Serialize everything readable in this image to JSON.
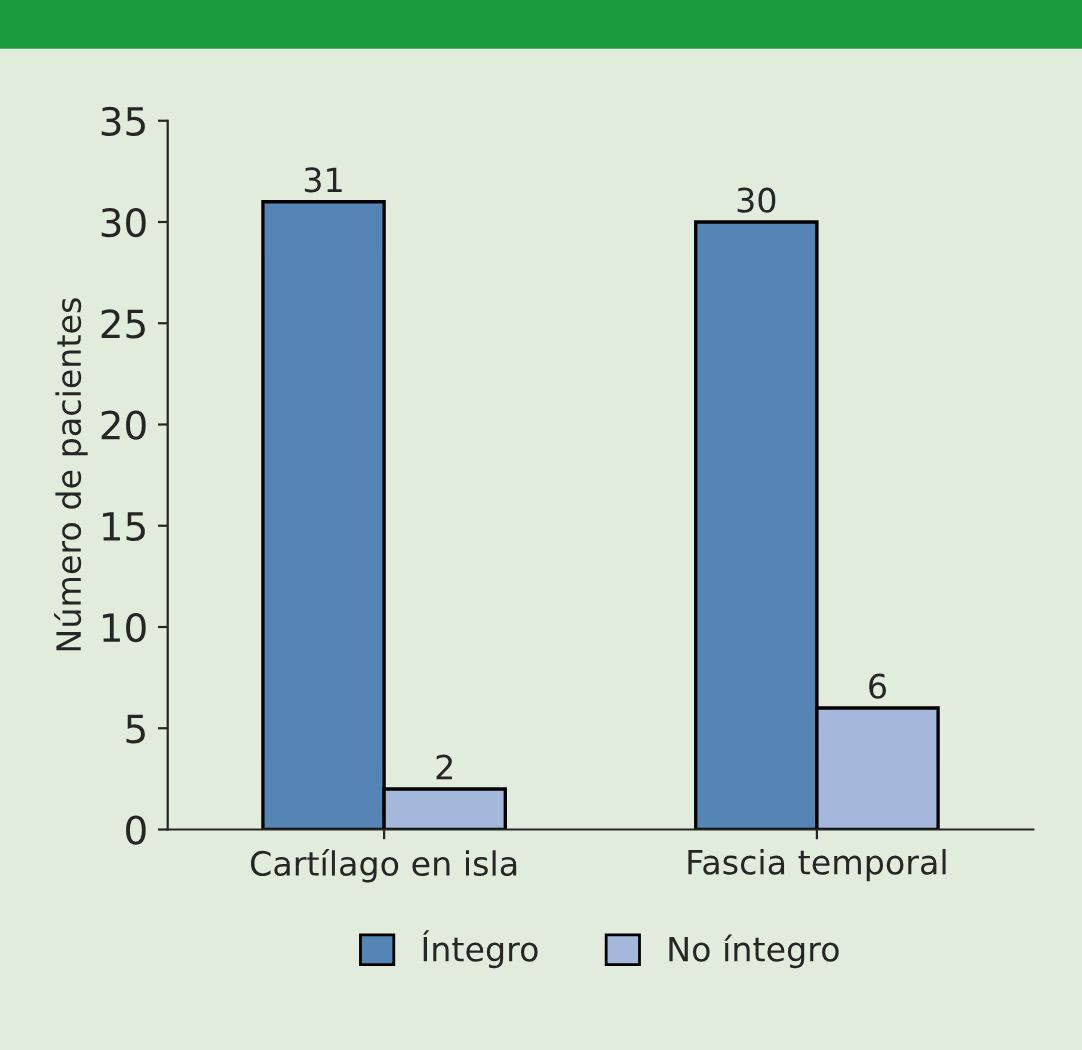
{
  "chart_data": {
    "type": "bar",
    "ylabel": "Número de pacientes",
    "categories": [
      "Cartílago en isla",
      "Fascia temporal"
    ],
    "series": [
      {
        "name": "Íntegro",
        "color": "#5585b5",
        "values": [
          31,
          30
        ]
      },
      {
        "name": "No íntegro",
        "color": "#a4b8dc",
        "values": [
          2,
          6
        ]
      }
    ],
    "ylim": [
      0,
      35
    ],
    "yticks": [
      0,
      5,
      10,
      15,
      20,
      25,
      30,
      35
    ],
    "data_labels": true,
    "legend": "bottom",
    "grid": false
  }
}
